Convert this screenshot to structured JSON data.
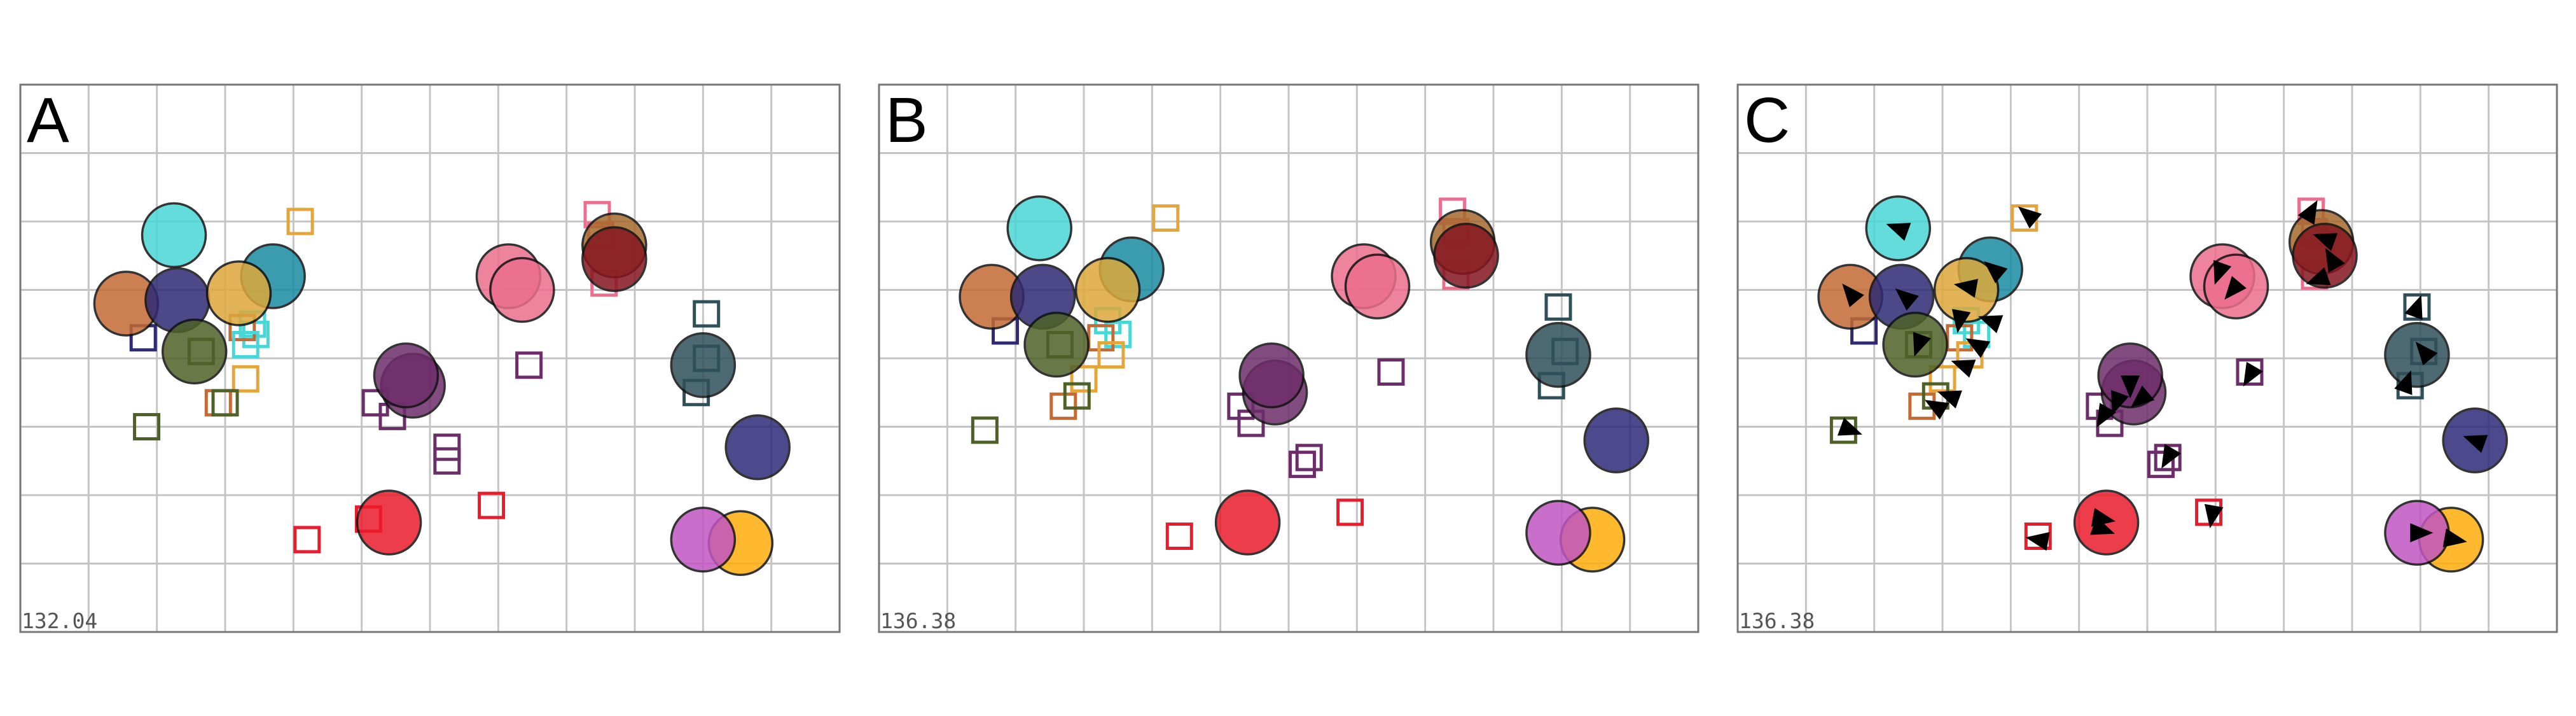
{
  "chart_data": [
    {
      "type": "scatter",
      "label": "A",
      "time": "132.04",
      "xlim": [
        0,
        12
      ],
      "ylim": [
        0,
        8
      ],
      "grid": true,
      "circles": [
        {
          "x": 2.25,
          "y": 5.8,
          "color": "#49d6d6"
        },
        {
          "x": 3.7,
          "y": 5.2,
          "color": "#1a8aa2"
        },
        {
          "x": 1.55,
          "y": 4.8,
          "color": "#c46a35"
        },
        {
          "x": 2.3,
          "y": 4.85,
          "color": "#2e2a74"
        },
        {
          "x": 3.2,
          "y": 4.95,
          "color": "#dda83a"
        },
        {
          "x": 2.55,
          "y": 4.1,
          "color": "#4e6126"
        },
        {
          "x": 5.75,
          "y": 3.6,
          "color": "#6d2d6a"
        },
        {
          "x": 5.65,
          "y": 3.75,
          "color": "#6d2d6a"
        },
        {
          "x": 7.15,
          "y": 5.2,
          "color": "#ec6e8e"
        },
        {
          "x": 7.35,
          "y": 5.0,
          "color": "#ec6e8e"
        },
        {
          "x": 8.7,
          "y": 5.65,
          "color": "#a66a2c"
        },
        {
          "x": 8.7,
          "y": 5.45,
          "color": "#861620"
        },
        {
          "x": 10.0,
          "y": 3.9,
          "color": "#2f4f5a"
        },
        {
          "x": 10.8,
          "y": 2.7,
          "color": "#2f2a7a"
        },
        {
          "x": 5.4,
          "y": 1.6,
          "color": "#ea1c2c"
        },
        {
          "x": 10.55,
          "y": 1.3,
          "color": "#ffad0a"
        },
        {
          "x": 10.0,
          "y": 1.35,
          "color": "#c056c2"
        }
      ],
      "squares": [
        {
          "x": 4.1,
          "y": 6.0,
          "color": "#e5a539"
        },
        {
          "x": 8.45,
          "y": 6.1,
          "color": "#ec6e8e"
        },
        {
          "x": 8.5,
          "y": 5.8,
          "color": "#ec6e8e"
        },
        {
          "x": 8.55,
          "y": 5.1,
          "color": "#ec6e8e"
        },
        {
          "x": 3.4,
          "y": 4.5,
          "color": "#49d6d6"
        },
        {
          "x": 3.45,
          "y": 4.35,
          "color": "#49d6d6"
        },
        {
          "x": 3.25,
          "y": 4.45,
          "color": "#c46a35"
        },
        {
          "x": 3.3,
          "y": 4.2,
          "color": "#49d6d6"
        },
        {
          "x": 1.8,
          "y": 4.3,
          "color": "#2e2a74"
        },
        {
          "x": 2.65,
          "y": 4.1,
          "color": "#4e6126"
        },
        {
          "x": 3.3,
          "y": 3.7,
          "color": "#e5a539"
        },
        {
          "x": 2.9,
          "y": 3.35,
          "color": "#c46a35"
        },
        {
          "x": 3.0,
          "y": 3.35,
          "color": "#4e6126"
        },
        {
          "x": 10.05,
          "y": 4.65,
          "color": "#2f4f5a"
        },
        {
          "x": 10.05,
          "y": 4.0,
          "color": "#2f4f5a"
        },
        {
          "x": 9.9,
          "y": 3.5,
          "color": "#2f4f5a"
        },
        {
          "x": 7.45,
          "y": 3.9,
          "color": "#6d2d6a"
        },
        {
          "x": 5.2,
          "y": 3.35,
          "color": "#6d2d6a"
        },
        {
          "x": 5.45,
          "y": 3.15,
          "color": "#6d2d6a"
        },
        {
          "x": 6.25,
          "y": 2.7,
          "color": "#6d2d6a"
        },
        {
          "x": 6.25,
          "y": 2.5,
          "color": "#6d2d6a"
        },
        {
          "x": 1.85,
          "y": 3.0,
          "color": "#4e6126"
        },
        {
          "x": 6.9,
          "y": 1.85,
          "color": "#ea1c2c"
        },
        {
          "x": 5.1,
          "y": 1.65,
          "color": "#ea1c2c"
        },
        {
          "x": 4.2,
          "y": 1.35,
          "color": "#ea1c2c"
        }
      ],
      "arrows": []
    },
    {
      "type": "scatter",
      "label": "B",
      "time": "136.38",
      "xlim": [
        0,
        12
      ],
      "ylim": [
        0,
        8
      ],
      "grid": true,
      "circles": [
        {
          "x": 2.35,
          "y": 5.9,
          "color": "#49d6d6"
        },
        {
          "x": 3.7,
          "y": 5.3,
          "color": "#1a8aa2"
        },
        {
          "x": 1.65,
          "y": 4.9,
          "color": "#c46a35"
        },
        {
          "x": 2.4,
          "y": 4.9,
          "color": "#2e2a74"
        },
        {
          "x": 3.35,
          "y": 5.0,
          "color": "#dda83a"
        },
        {
          "x": 2.6,
          "y": 4.2,
          "color": "#4e6126"
        },
        {
          "x": 5.8,
          "y": 3.5,
          "color": "#6d2d6a"
        },
        {
          "x": 5.75,
          "y": 3.75,
          "color": "#6d2d6a"
        },
        {
          "x": 7.1,
          "y": 5.2,
          "color": "#ec6e8e"
        },
        {
          "x": 7.3,
          "y": 5.05,
          "color": "#ec6e8e"
        },
        {
          "x": 8.55,
          "y": 5.7,
          "color": "#a66a2c"
        },
        {
          "x": 8.6,
          "y": 5.5,
          "color": "#861620"
        },
        {
          "x": 9.95,
          "y": 4.05,
          "color": "#2f4f5a"
        },
        {
          "x": 10.8,
          "y": 2.8,
          "color": "#2f2a7a"
        },
        {
          "x": 5.4,
          "y": 1.6,
          "color": "#ea1c2c"
        },
        {
          "x": 10.45,
          "y": 1.35,
          "color": "#ffad0a"
        },
        {
          "x": 9.95,
          "y": 1.45,
          "color": "#c056c2"
        }
      ],
      "squares": [
        {
          "x": 4.2,
          "y": 6.05,
          "color": "#e5a539"
        },
        {
          "x": 8.4,
          "y": 6.15,
          "color": "#ec6e8e"
        },
        {
          "x": 8.45,
          "y": 5.85,
          "color": "#ec6e8e"
        },
        {
          "x": 8.45,
          "y": 5.2,
          "color": "#ec6e8e"
        },
        {
          "x": 3.35,
          "y": 4.55,
          "color": "#49d6d6"
        },
        {
          "x": 3.5,
          "y": 4.35,
          "color": "#49d6d6"
        },
        {
          "x": 3.25,
          "y": 4.3,
          "color": "#c46a35"
        },
        {
          "x": 3.4,
          "y": 4.05,
          "color": "#e5a539"
        },
        {
          "x": 1.85,
          "y": 4.4,
          "color": "#2e2a74"
        },
        {
          "x": 2.65,
          "y": 4.2,
          "color": "#4e6126"
        },
        {
          "x": 3.0,
          "y": 3.7,
          "color": "#e5a539"
        },
        {
          "x": 2.7,
          "y": 3.3,
          "color": "#c46a35"
        },
        {
          "x": 2.9,
          "y": 3.45,
          "color": "#4e6126"
        },
        {
          "x": 9.95,
          "y": 4.75,
          "color": "#2f4f5a"
        },
        {
          "x": 10.05,
          "y": 4.1,
          "color": "#2f4f5a"
        },
        {
          "x": 9.85,
          "y": 3.6,
          "color": "#2f4f5a"
        },
        {
          "x": 7.5,
          "y": 3.8,
          "color": "#6d2d6a"
        },
        {
          "x": 5.3,
          "y": 3.3,
          "color": "#6d2d6a"
        },
        {
          "x": 5.45,
          "y": 3.05,
          "color": "#6d2d6a"
        },
        {
          "x": 6.3,
          "y": 2.55,
          "color": "#6d2d6a"
        },
        {
          "x": 6.2,
          "y": 2.45,
          "color": "#6d2d6a"
        },
        {
          "x": 1.55,
          "y": 2.95,
          "color": "#4e6126"
        },
        {
          "x": 6.9,
          "y": 1.75,
          "color": "#ea1c2c"
        },
        {
          "x": 4.4,
          "y": 1.4,
          "color": "#ea1c2c"
        }
      ],
      "arrows": []
    },
    {
      "type": "scatter",
      "label": "C",
      "time": "136.38",
      "xlim": [
        0,
        12
      ],
      "ylim": [
        0,
        8
      ],
      "grid": true,
      "circles": [
        {
          "x": 2.35,
          "y": 5.9,
          "color": "#49d6d6"
        },
        {
          "x": 3.7,
          "y": 5.3,
          "color": "#1a8aa2"
        },
        {
          "x": 1.65,
          "y": 4.9,
          "color": "#c46a35"
        },
        {
          "x": 2.4,
          "y": 4.9,
          "color": "#2e2a74"
        },
        {
          "x": 3.35,
          "y": 5.0,
          "color": "#dda83a"
        },
        {
          "x": 2.6,
          "y": 4.2,
          "color": "#4e6126"
        },
        {
          "x": 5.8,
          "y": 3.5,
          "color": "#6d2d6a"
        },
        {
          "x": 5.75,
          "y": 3.75,
          "color": "#6d2d6a"
        },
        {
          "x": 7.1,
          "y": 5.2,
          "color": "#ec6e8e"
        },
        {
          "x": 7.3,
          "y": 5.05,
          "color": "#ec6e8e"
        },
        {
          "x": 8.55,
          "y": 5.7,
          "color": "#a66a2c"
        },
        {
          "x": 8.6,
          "y": 5.5,
          "color": "#861620"
        },
        {
          "x": 9.95,
          "y": 4.05,
          "color": "#2f4f5a"
        },
        {
          "x": 10.8,
          "y": 2.8,
          "color": "#2f2a7a"
        },
        {
          "x": 5.4,
          "y": 1.6,
          "color": "#ea1c2c"
        },
        {
          "x": 10.45,
          "y": 1.35,
          "color": "#ffad0a"
        },
        {
          "x": 9.95,
          "y": 1.45,
          "color": "#c056c2"
        }
      ],
      "squares": [
        {
          "x": 4.2,
          "y": 6.05,
          "color": "#e5a539"
        },
        {
          "x": 8.4,
          "y": 6.15,
          "color": "#ec6e8e"
        },
        {
          "x": 8.45,
          "y": 5.85,
          "color": "#ec6e8e"
        },
        {
          "x": 8.45,
          "y": 5.2,
          "color": "#ec6e8e"
        },
        {
          "x": 3.35,
          "y": 4.55,
          "color": "#49d6d6"
        },
        {
          "x": 3.5,
          "y": 4.35,
          "color": "#49d6d6"
        },
        {
          "x": 3.25,
          "y": 4.3,
          "color": "#c46a35"
        },
        {
          "x": 3.4,
          "y": 4.05,
          "color": "#e5a539"
        },
        {
          "x": 1.85,
          "y": 4.4,
          "color": "#2e2a74"
        },
        {
          "x": 2.65,
          "y": 4.2,
          "color": "#4e6126"
        },
        {
          "x": 3.0,
          "y": 3.7,
          "color": "#e5a539"
        },
        {
          "x": 2.7,
          "y": 3.3,
          "color": "#c46a35"
        },
        {
          "x": 2.9,
          "y": 3.45,
          "color": "#4e6126"
        },
        {
          "x": 9.95,
          "y": 4.75,
          "color": "#2f4f5a"
        },
        {
          "x": 10.05,
          "y": 4.1,
          "color": "#2f4f5a"
        },
        {
          "x": 9.85,
          "y": 3.6,
          "color": "#2f4f5a"
        },
        {
          "x": 7.5,
          "y": 3.8,
          "color": "#6d2d6a"
        },
        {
          "x": 5.3,
          "y": 3.3,
          "color": "#6d2d6a"
        },
        {
          "x": 5.45,
          "y": 3.05,
          "color": "#6d2d6a"
        },
        {
          "x": 6.3,
          "y": 2.55,
          "color": "#6d2d6a"
        },
        {
          "x": 6.2,
          "y": 2.45,
          "color": "#6d2d6a"
        },
        {
          "x": 1.55,
          "y": 2.95,
          "color": "#4e6126"
        },
        {
          "x": 6.9,
          "y": 1.75,
          "color": "#ea1c2c"
        },
        {
          "x": 4.4,
          "y": 1.4,
          "color": "#ea1c2c"
        }
      ],
      "arrows": [
        {
          "x": 2.35,
          "y": 5.9,
          "angle": 200
        },
        {
          "x": 3.75,
          "y": 5.3,
          "angle": 220
        },
        {
          "x": 1.65,
          "y": 4.95,
          "angle": 230
        },
        {
          "x": 2.45,
          "y": 4.9,
          "angle": 220
        },
        {
          "x": 3.35,
          "y": 5.05,
          "angle": 190
        },
        {
          "x": 3.7,
          "y": 4.55,
          "angle": 200
        },
        {
          "x": 2.65,
          "y": 4.2,
          "angle": 110
        },
        {
          "x": 3.5,
          "y": 4.2,
          "angle": 210
        },
        {
          "x": 3.25,
          "y": 4.55,
          "angle": 100
        },
        {
          "x": 3.3,
          "y": 3.9,
          "angle": 200
        },
        {
          "x": 2.9,
          "y": 3.3,
          "angle": 210
        },
        {
          "x": 3.1,
          "y": 3.45,
          "angle": 200
        },
        {
          "x": 4.25,
          "y": 6.1,
          "angle": 220
        },
        {
          "x": 8.4,
          "y": 6.15,
          "angle": 300
        },
        {
          "x": 8.6,
          "y": 5.75,
          "angle": 200
        },
        {
          "x": 8.7,
          "y": 5.45,
          "angle": 240
        },
        {
          "x": 8.5,
          "y": 5.15,
          "angle": 160
        },
        {
          "x": 7.05,
          "y": 5.25,
          "angle": 110
        },
        {
          "x": 7.25,
          "y": 5.0,
          "angle": 130
        },
        {
          "x": 5.75,
          "y": 3.6,
          "angle": 90
        },
        {
          "x": 5.55,
          "y": 3.35,
          "angle": 110
        },
        {
          "x": 5.35,
          "y": 3.15,
          "angle": 120
        },
        {
          "x": 5.9,
          "y": 3.4,
          "angle": 140
        },
        {
          "x": 6.3,
          "y": 2.55,
          "angle": 120
        },
        {
          "x": 7.5,
          "y": 3.75,
          "angle": 120
        },
        {
          "x": 9.95,
          "y": 4.75,
          "angle": 290
        },
        {
          "x": 10.05,
          "y": 4.1,
          "angle": 230
        },
        {
          "x": 9.8,
          "y": 3.65,
          "angle": 290
        },
        {
          "x": 10.8,
          "y": 2.8,
          "angle": 200
        },
        {
          "x": 5.35,
          "y": 1.65,
          "angle": 10
        },
        {
          "x": 5.35,
          "y": 1.5,
          "angle": 20
        },
        {
          "x": 6.95,
          "y": 1.7,
          "angle": 100
        },
        {
          "x": 4.4,
          "y": 1.35,
          "angle": 190
        },
        {
          "x": 1.65,
          "y": 2.95,
          "angle": 20
        },
        {
          "x": 10.0,
          "y": 1.45,
          "angle": 0
        },
        {
          "x": 10.5,
          "y": 1.35,
          "angle": 10
        }
      ]
    }
  ]
}
